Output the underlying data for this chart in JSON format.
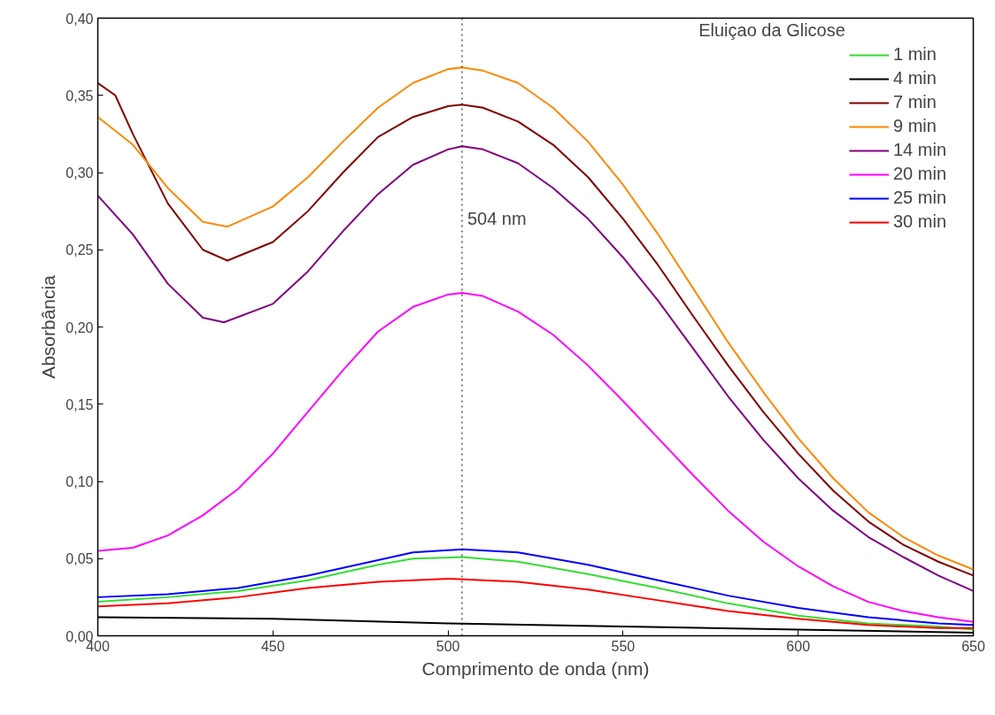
{
  "chart_data": {
    "type": "line",
    "xlabel": "Comprimento de onda (nm)",
    "ylabel": "Absorbância",
    "annotations": [
      "Eluiçao da Glicose"
    ],
    "xlim": [
      400,
      650
    ],
    "xticks": [
      400,
      450,
      500,
      550,
      600,
      650
    ],
    "ylim": [
      0,
      0.4
    ],
    "yticks": [
      {
        "value": 0,
        "label": "0,00"
      },
      {
        "value": 0.05,
        "label": "0,05"
      },
      {
        "value": 0.1,
        "label": "0,10"
      },
      {
        "value": 0.15,
        "label": "0,15"
      },
      {
        "value": 0.2,
        "label": "0,20"
      },
      {
        "value": 0.25,
        "label": "0,25"
      },
      {
        "value": 0.3,
        "label": "0,30"
      },
      {
        "value": 0.35,
        "label": "0,35"
      },
      {
        "value": 0.4,
        "label": "0,40"
      }
    ],
    "grid": false,
    "legend": "top right",
    "line_style": "solid",
    "marker": "none",
    "ref_lines": [
      {
        "axis": "x",
        "value": 504,
        "label": "504 nm",
        "color": "#000000",
        "line_style": "dotted"
      }
    ],
    "series": [
      {
        "name": "1 min",
        "color": "#33dd33",
        "x": [
          400,
          420,
          440,
          460,
          480,
          490,
          504,
          520,
          540,
          560,
          580,
          600,
          620,
          640,
          650
        ],
        "values": [
          0.022,
          0.025,
          0.029,
          0.036,
          0.046,
          0.05,
          0.051,
          0.048,
          0.04,
          0.031,
          0.021,
          0.013,
          0.008,
          0.006,
          0.004
        ]
      },
      {
        "name": "4 min",
        "color": "#000000",
        "x": [
          400,
          450,
          500,
          550,
          600,
          650
        ],
        "values": [
          0.012,
          0.011,
          0.008,
          0.006,
          0.004,
          0.002
        ]
      },
      {
        "name": "7 min",
        "color": "#800000",
        "x": [
          400,
          405,
          410,
          420,
          430,
          437,
          450,
          460,
          470,
          480,
          490,
          500,
          504,
          510,
          520,
          530,
          540,
          550,
          560,
          570,
          580,
          590,
          600,
          610,
          620,
          630,
          640,
          650
        ],
        "values": [
          0.358,
          0.35,
          0.325,
          0.28,
          0.25,
          0.243,
          0.255,
          0.275,
          0.3,
          0.323,
          0.336,
          0.343,
          0.344,
          0.342,
          0.333,
          0.318,
          0.297,
          0.27,
          0.24,
          0.207,
          0.175,
          0.145,
          0.118,
          0.094,
          0.074,
          0.059,
          0.048,
          0.039
        ]
      },
      {
        "name": "9 min",
        "color": "#ff8800",
        "x": [
          400,
          410,
          420,
          430,
          437,
          450,
          460,
          470,
          480,
          490,
          500,
          504,
          510,
          520,
          530,
          540,
          550,
          560,
          570,
          580,
          590,
          600,
          610,
          620,
          630,
          640,
          650
        ],
        "values": [
          0.336,
          0.318,
          0.29,
          0.268,
          0.265,
          0.278,
          0.297,
          0.32,
          0.342,
          0.358,
          0.367,
          0.368,
          0.366,
          0.358,
          0.342,
          0.32,
          0.292,
          0.26,
          0.225,
          0.19,
          0.158,
          0.128,
          0.102,
          0.08,
          0.064,
          0.052,
          0.043
        ]
      },
      {
        "name": "14 min",
        "color": "#800080",
        "x": [
          400,
          410,
          420,
          430,
          436,
          450,
          460,
          470,
          480,
          490,
          500,
          504,
          510,
          520,
          530,
          540,
          550,
          560,
          570,
          580,
          590,
          600,
          610,
          620,
          630,
          640,
          650
        ],
        "values": [
          0.285,
          0.26,
          0.228,
          0.206,
          0.203,
          0.215,
          0.236,
          0.262,
          0.286,
          0.305,
          0.315,
          0.317,
          0.315,
          0.306,
          0.29,
          0.27,
          0.245,
          0.217,
          0.186,
          0.155,
          0.127,
          0.102,
          0.081,
          0.064,
          0.051,
          0.039,
          0.029
        ]
      },
      {
        "name": "20 min",
        "color": "#ff00ff",
        "x": [
          400,
          410,
          420,
          430,
          440,
          450,
          460,
          470,
          480,
          490,
          500,
          504,
          510,
          520,
          530,
          540,
          550,
          560,
          570,
          580,
          590,
          600,
          610,
          620,
          630,
          640,
          650
        ],
        "values": [
          0.055,
          0.057,
          0.065,
          0.078,
          0.095,
          0.118,
          0.145,
          0.172,
          0.197,
          0.213,
          0.221,
          0.222,
          0.22,
          0.21,
          0.195,
          0.175,
          0.152,
          0.128,
          0.104,
          0.081,
          0.061,
          0.045,
          0.032,
          0.022,
          0.016,
          0.012,
          0.009
        ]
      },
      {
        "name": "25 min",
        "color": "#0000ff",
        "x": [
          400,
          420,
          440,
          460,
          480,
          490,
          504,
          520,
          540,
          560,
          580,
          600,
          620,
          640,
          650
        ],
        "values": [
          0.025,
          0.027,
          0.031,
          0.039,
          0.049,
          0.054,
          0.056,
          0.054,
          0.046,
          0.036,
          0.026,
          0.018,
          0.012,
          0.008,
          0.007
        ]
      },
      {
        "name": "30 min",
        "color": "#ff0000",
        "x": [
          400,
          420,
          440,
          460,
          480,
          500,
          520,
          540,
          560,
          580,
          600,
          620,
          640,
          650
        ],
        "values": [
          0.019,
          0.021,
          0.025,
          0.031,
          0.035,
          0.037,
          0.035,
          0.03,
          0.023,
          0.016,
          0.011,
          0.007,
          0.005,
          0.005
        ]
      }
    ]
  }
}
